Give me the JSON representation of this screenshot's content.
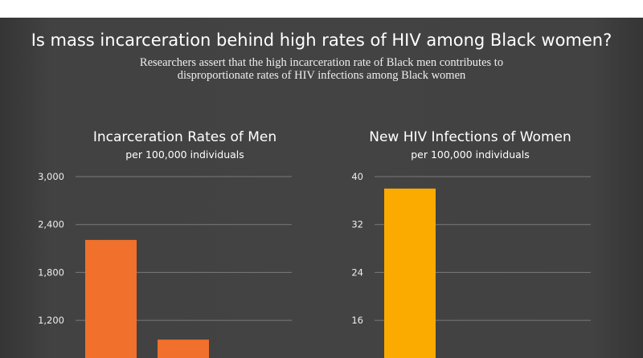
{
  "title": "Is mass incarceration behind high rates of HIV among Black women?",
  "subtitle_lines": [
    "Researchers assert that the high incarceration rate of Black men contributes to",
    "disproportionate rates of HIV infections among Black women"
  ],
  "chart_data": [
    {
      "type": "bar",
      "title": "Incarceration Rates of Men",
      "subtitle": "per 100,000 individuals",
      "yticks": [
        "3,000",
        "2,400",
        "1,800",
        "1,200"
      ],
      "ytick_values": [
        3000,
        2400,
        1800,
        1200
      ],
      "ylim_top": 3000,
      "values": [
        2207,
        959
      ],
      "color": "#f0702c",
      "grid": true
    },
    {
      "type": "bar",
      "title": "New HIV Infections of Women",
      "subtitle": "per 100,000 individuals",
      "yticks": [
        "40",
        "32",
        "24",
        "16"
      ],
      "ytick_values": [
        40,
        32,
        24,
        16
      ],
      "ylim_top": 40,
      "values": [
        38
      ],
      "color": "#fbaa00",
      "grid": true
    }
  ]
}
